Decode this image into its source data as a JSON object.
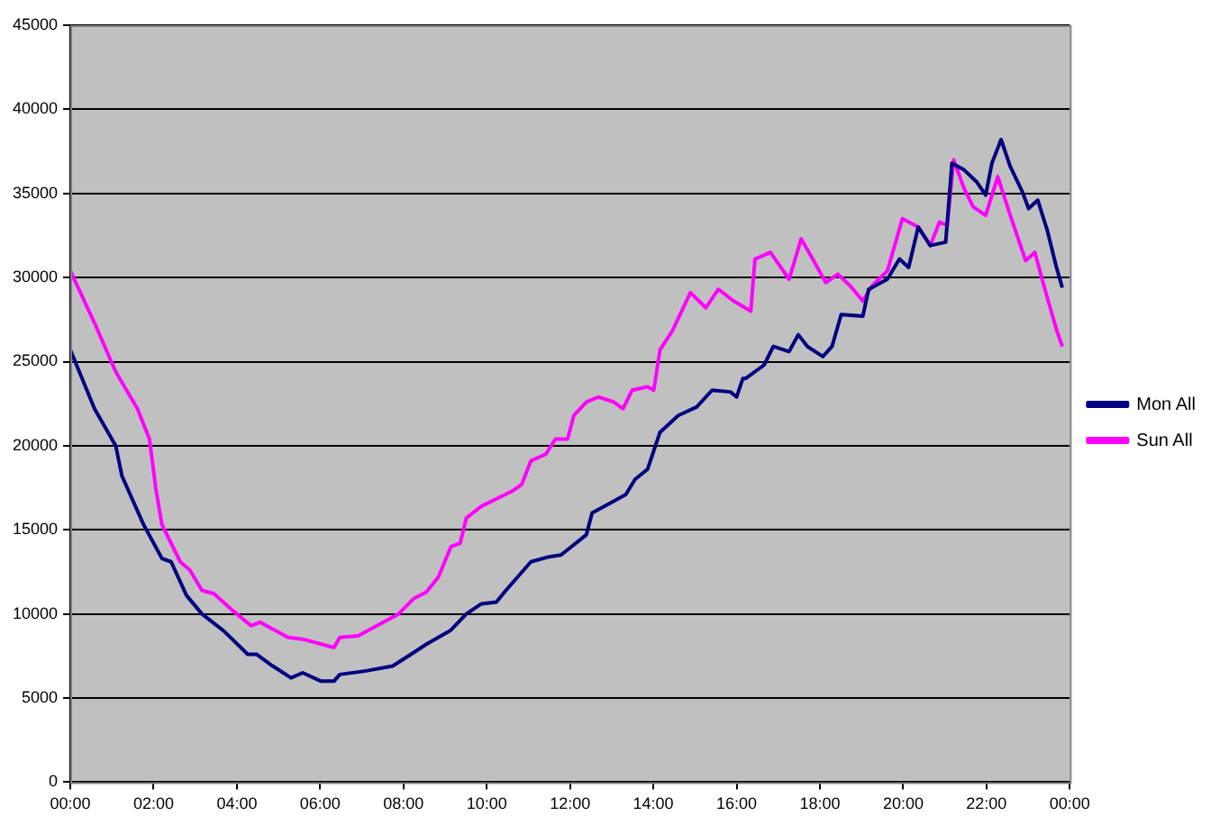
{
  "chart_data": {
    "type": "line",
    "x": [
      0,
      0.58,
      1.09,
      1.24,
      1.76,
      2.2,
      2.42,
      2.79,
      3.16,
      3.68,
      4.26,
      4.47,
      4.86,
      5.3,
      5.58,
      6.02,
      6.33,
      6.47,
      7.07,
      7.74,
      8.18,
      8.55,
      9.12,
      9.51,
      9.87,
      10.23,
      10.46,
      11.06,
      11.5,
      11.78,
      12.39,
      12.53,
      12.97,
      13.34,
      13.56,
      13.86,
      14.16,
      14.6,
      15.04,
      15.41,
      15.85,
      16.0,
      16.15,
      16.22,
      16.66,
      16.88,
      17.26,
      17.48,
      17.7,
      18.07,
      18.29,
      18.51,
      19.03,
      19.17,
      19.62,
      19.91,
      20.13,
      20.36,
      20.65,
      21.02,
      21.17,
      21.46,
      21.76,
      21.98,
      22.13,
      22.35,
      22.57,
      22.86,
      23.01,
      23.23,
      23.46,
      23.68,
      23.82
    ],
    "series": [
      {
        "name": "Mon All",
        "color": "#000080",
        "values": [
          25700,
          22200,
          20000,
          18200,
          15300,
          13300,
          13100,
          11100,
          10000,
          9000,
          7600,
          7600,
          6900,
          6200,
          6500,
          6000,
          6000,
          6400,
          6600,
          6900,
          7600,
          8200,
          9000,
          10000,
          10600,
          10700,
          11400,
          13100,
          13400,
          13500,
          14700,
          16000,
          16600,
          17100,
          18000,
          18600,
          20800,
          21800,
          22300,
          23300,
          23200,
          22900,
          24000,
          24000,
          24800,
          25900,
          25600,
          26600,
          25900,
          25300,
          25900,
          27800,
          27700,
          29300,
          29900,
          31100,
          30600,
          33000,
          31900,
          32100,
          36800,
          36400,
          35700,
          34900,
          36800,
          38200,
          36600,
          35100,
          34100,
          34600,
          32800,
          30600,
          29400
        ]
      },
      {
        "name": "Sun All",
        "color": "#ff00ff",
        "x": [
          0,
          0.58,
          1.09,
          1.61,
          1.9,
          2.05,
          2.2,
          2.64,
          2.87,
          3.16,
          3.45,
          3.9,
          4.34,
          4.56,
          5.23,
          5.58,
          6.33,
          6.47,
          6.91,
          7.51,
          7.88,
          8.24,
          8.55,
          8.84,
          9.14,
          9.36,
          9.51,
          9.87,
          10.61,
          10.84,
          11.06,
          11.42,
          11.65,
          11.94,
          12.09,
          12.39,
          12.68,
          13.05,
          13.27,
          13.49,
          13.86,
          14.01,
          14.16,
          14.45,
          14.89,
          15.26,
          15.56,
          15.93,
          16.34,
          16.44,
          16.81,
          17.26,
          17.55,
          17.85,
          18.14,
          18.43,
          18.73,
          19.03,
          19.25,
          19.62,
          19.98,
          20.36,
          20.65,
          20.87,
          21.06,
          21.21,
          21.46,
          21.68,
          21.98,
          22.27,
          22.57,
          22.94,
          23.16,
          23.38,
          23.68,
          23.82
        ],
        "values": [
          30400,
          27300,
          24400,
          22200,
          20400,
          17500,
          15300,
          13100,
          12600,
          11400,
          11200,
          10200,
          9300,
          9500,
          8600,
          8500,
          8000,
          8600,
          8700,
          9500,
          10000,
          10900,
          11300,
          12200,
          14000,
          14200,
          15700,
          16400,
          17300,
          17700,
          19100,
          19500,
          20400,
          20400,
          21800,
          22600,
          22900,
          22600,
          22200,
          23300,
          23500,
          23300,
          25700,
          26800,
          29100,
          28200,
          29300,
          28600,
          28000,
          31100,
          31500,
          29900,
          32300,
          31000,
          29700,
          30200,
          29500,
          28600,
          29500,
          30400,
          33500,
          33000,
          31900,
          33300,
          33100,
          37000,
          35300,
          34200,
          33700,
          36000,
          33700,
          31000,
          31500,
          29500,
          26900,
          25900
        ]
      }
    ],
    "xlim": [
      0,
      24
    ],
    "xticks": [
      {
        "value": 0,
        "label": "00:00"
      },
      {
        "value": 2,
        "label": "02:00"
      },
      {
        "value": 4,
        "label": "04:00"
      },
      {
        "value": 6,
        "label": "06:00"
      },
      {
        "value": 8,
        "label": "08:00"
      },
      {
        "value": 10,
        "label": "10:00"
      },
      {
        "value": 12,
        "label": "12:00"
      },
      {
        "value": 14,
        "label": "14:00"
      },
      {
        "value": 16,
        "label": "16:00"
      },
      {
        "value": 18,
        "label": "18:00"
      },
      {
        "value": 20,
        "label": "20:00"
      },
      {
        "value": 22,
        "label": "22:00"
      },
      {
        "value": 24,
        "label": "00:00"
      }
    ],
    "ylim": [
      0,
      45000
    ],
    "yticks": [
      0,
      5000,
      10000,
      15000,
      20000,
      25000,
      30000,
      35000,
      40000,
      45000
    ],
    "grid": "y",
    "legend": "right",
    "marker": "none",
    "line_style": "solid"
  }
}
